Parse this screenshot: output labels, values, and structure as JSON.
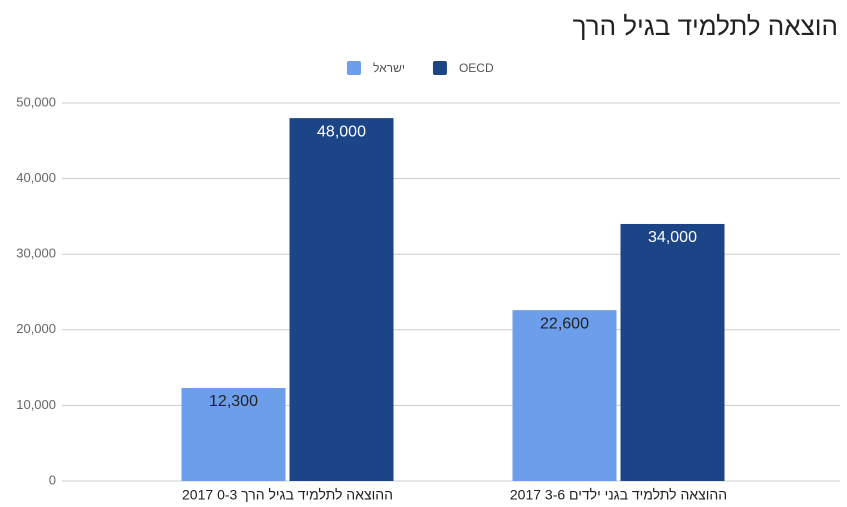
{
  "chart_data": {
    "type": "bar",
    "title": "הוצאה לתלמיד בגיל הרך",
    "categories": [
      "ההוצאה לתלמיד בגיל הרך 0-3 2017",
      "ההוצאה לתלמיד בגני ילדים 3-6 2017"
    ],
    "series": [
      {
        "name": "ישראל",
        "color": "#6d9eeb",
        "values": [
          12300,
          22600
        ],
        "value_labels": [
          "12,300",
          "22,600"
        ]
      },
      {
        "name": "OECD",
        "color": "#1c4587",
        "values": [
          48000,
          34000
        ],
        "value_labels": [
          "48,000",
          "34,000"
        ]
      }
    ],
    "ylim": [
      0,
      50000
    ],
    "yticks": [
      0,
      {
        "value": 10000,
        "label": "10,000"
      },
      {
        "value": 20000,
        "label": "20,000"
      },
      {
        "value": 30000,
        "label": "30,000"
      },
      {
        "value": 40000,
        "label": "40,000"
      },
      {
        "value": 50000,
        "label": "50,000"
      }
    ],
    "grid": true
  }
}
